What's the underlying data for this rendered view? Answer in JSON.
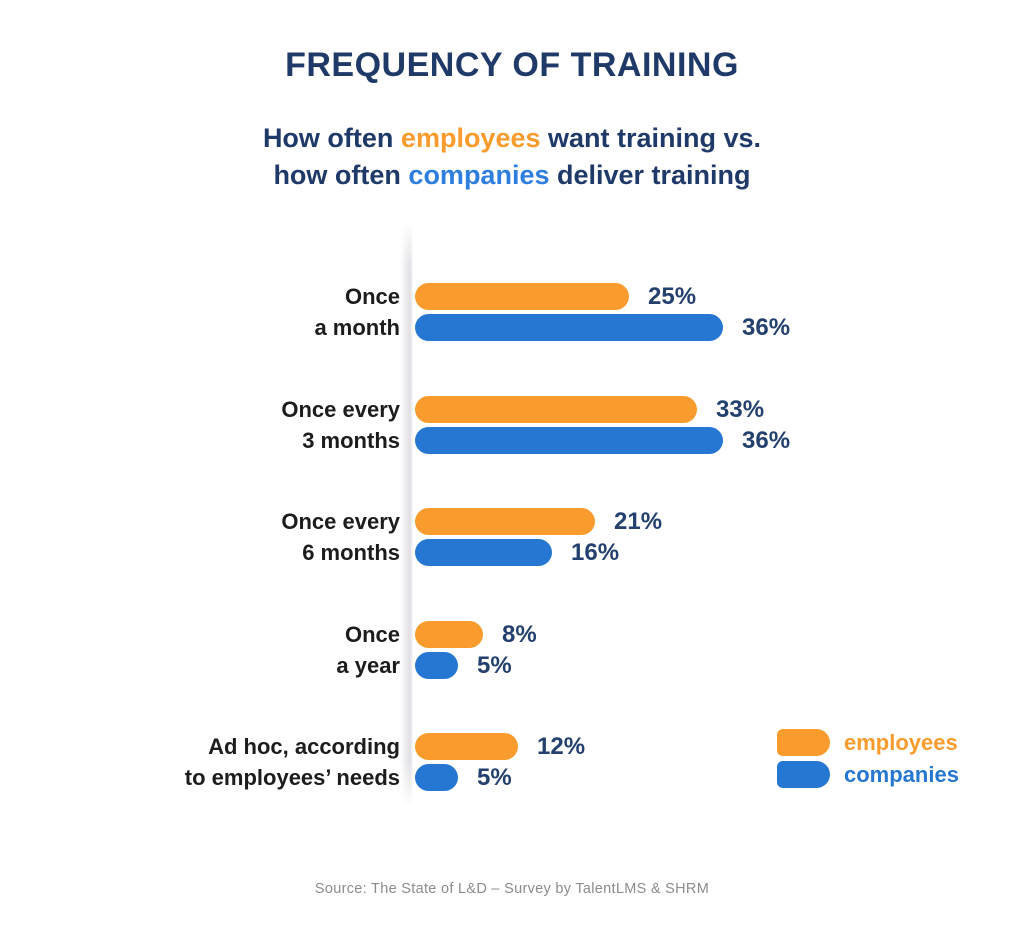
{
  "header": {
    "title": "FREQUENCY OF TRAINING",
    "subtitle": {
      "line1": [
        "How often ",
        "employees",
        " want training vs."
      ],
      "line2": [
        "how often ",
        "companies",
        " deliver training"
      ]
    }
  },
  "chart_data": {
    "type": "bar",
    "orientation": "horizontal",
    "title": "FREQUENCY OF TRAINING",
    "subtitle": "How often employees want training vs. how often companies deliver training",
    "categories": [
      "Once a month",
      "Once every 3 months",
      "Once every 6 months",
      "Once a year",
      "Ad hoc, according to employees’ needs"
    ],
    "category_label_lines": [
      [
        "Once",
        "a month"
      ],
      [
        "Once every",
        "3 months"
      ],
      [
        "Once every",
        "6 months"
      ],
      [
        "Once",
        "a year"
      ],
      [
        "Ad hoc, according",
        "to employees’ needs"
      ]
    ],
    "series": [
      {
        "name": "employees",
        "color": "#F99B2D",
        "values": [
          25,
          33,
          21,
          8,
          12
        ]
      },
      {
        "name": "companies",
        "color": "#2677D2",
        "values": [
          36,
          36,
          16,
          5,
          5
        ]
      }
    ],
    "value_suffix": "%",
    "xlim": [
      0,
      40
    ],
    "grid": false,
    "legend_position": "bottom-right"
  },
  "legend": {
    "items": [
      {
        "label": "employees",
        "color": "#F99B2D"
      },
      {
        "label": "companies",
        "color": "#2677D2"
      }
    ]
  },
  "footer": {
    "source": "Source: The State of L&D – Survey by TalentLMS & SHRM"
  },
  "colors": {
    "title_navy": "#1F3A68",
    "value_label_navy": "#23406E",
    "category_label": "#1C1C1E",
    "accent_orange": "#F99B2D",
    "accent_blue": "#2E7EE0",
    "source_gray": "#8C8C90"
  }
}
